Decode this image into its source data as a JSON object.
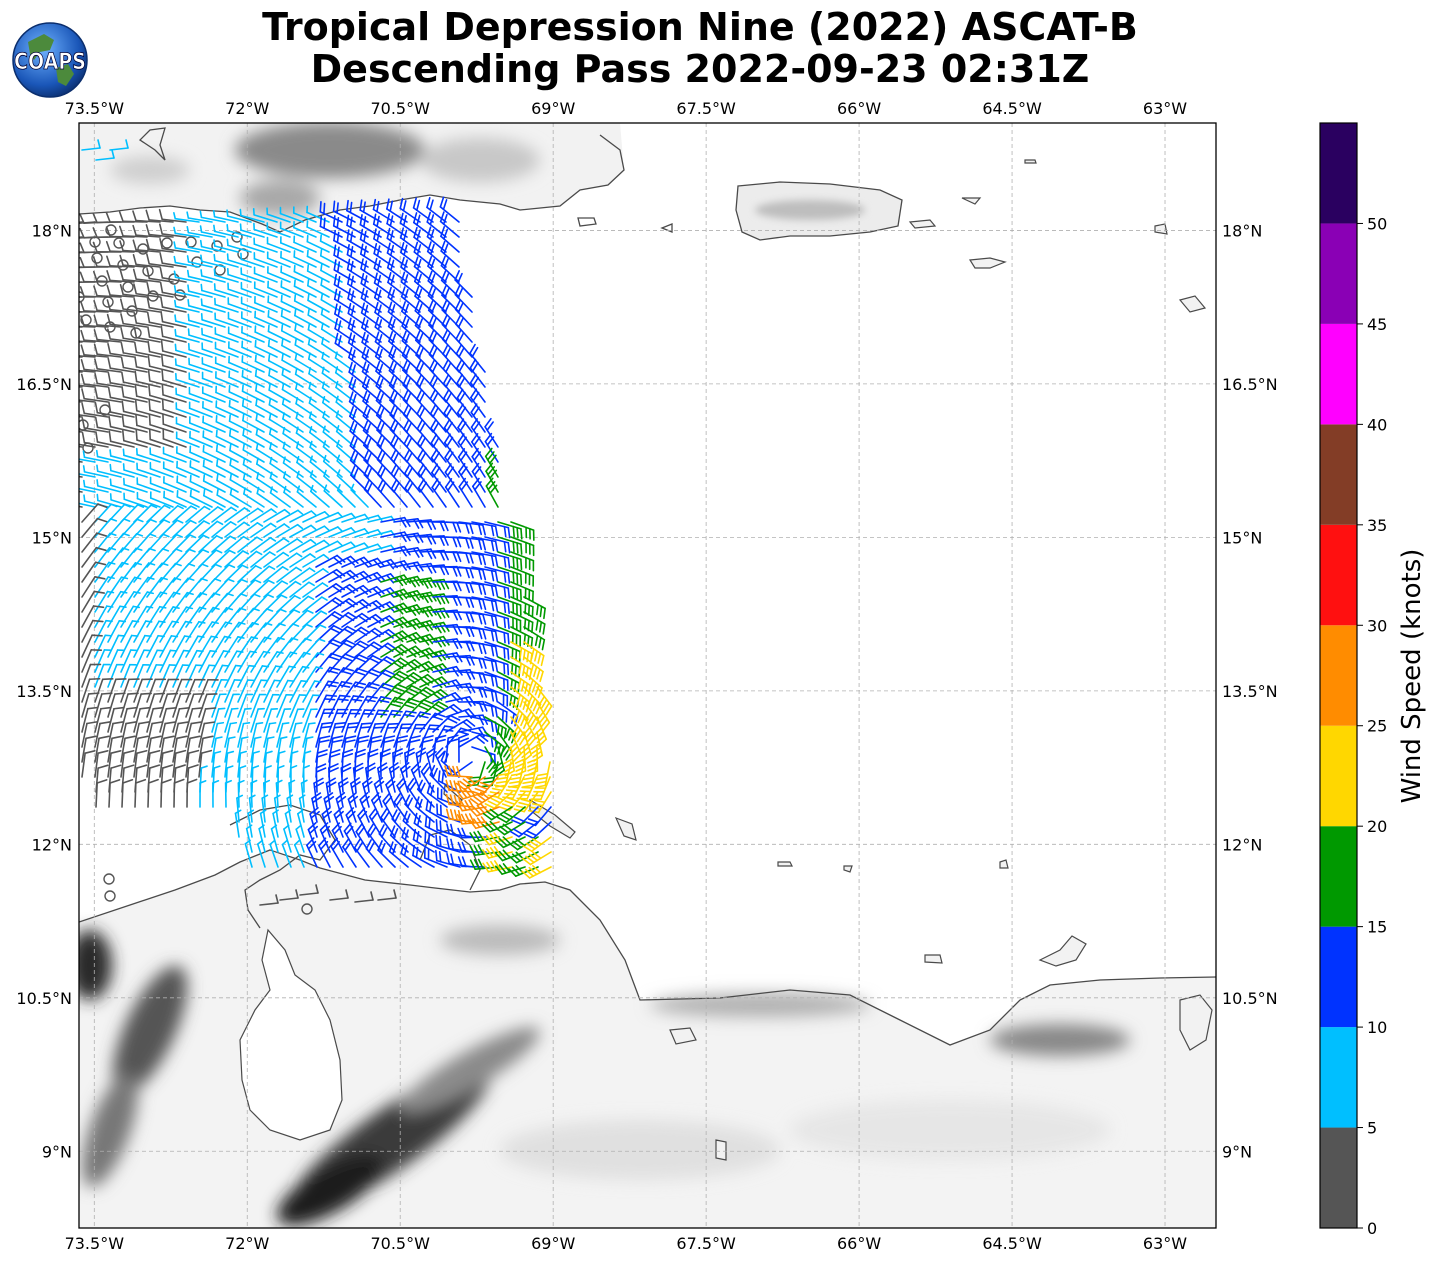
{
  "title_line1": "Tropical Depression Nine (2022) ASCAT-B",
  "title_line2": "Descending Pass 2022-09-23 02:31Z",
  "logo_text": "COAPS",
  "map": {
    "lon_range": [
      -73.65,
      -62.5
    ],
    "lat_range": [
      8.25,
      19.05
    ],
    "lon_ticks": [
      {
        "value": -73.5,
        "label": "73.5°W"
      },
      {
        "value": -72,
        "label": "72°W"
      },
      {
        "value": -70.5,
        "label": "70.5°W"
      },
      {
        "value": -69,
        "label": "69°W"
      },
      {
        "value": -67.5,
        "label": "67.5°W"
      },
      {
        "value": -66,
        "label": "66°W"
      },
      {
        "value": -64.5,
        "label": "64.5°W"
      },
      {
        "value": -63,
        "label": "63°W"
      }
    ],
    "lat_ticks": [
      {
        "value": 18,
        "label": "18°N"
      },
      {
        "value": 16.5,
        "label": "16.5°N"
      },
      {
        "value": 15,
        "label": "15°N"
      },
      {
        "value": 13.5,
        "label": "13.5°N"
      },
      {
        "value": 12,
        "label": "12°N"
      },
      {
        "value": 10.5,
        "label": "10.5°N"
      },
      {
        "value": 9,
        "label": "9°N"
      }
    ],
    "gridlines": true
  },
  "colorbar": {
    "label": "Wind Speed (knots)",
    "bounds": [
      0,
      5,
      10,
      15,
      20,
      25,
      30,
      35,
      40,
      45,
      50,
      55
    ],
    "tick_values": [
      0,
      5,
      10,
      15,
      20,
      25,
      30,
      35,
      40,
      45,
      50
    ],
    "colors": [
      "#555555",
      "#00bfff",
      "#0033ff",
      "#009900",
      "#ffd700",
      "#ff8c00",
      "#ff1010",
      "#833d26",
      "#ff00ff",
      "#8a00b5",
      "#2a0060"
    ]
  },
  "swath": {
    "wind_barbs_shown": true,
    "calm_circles_shown": true,
    "color_classes_present": [
      "0-5",
      "5-10",
      "10-15",
      "15-20",
      "20-25",
      "25-30"
    ]
  }
}
